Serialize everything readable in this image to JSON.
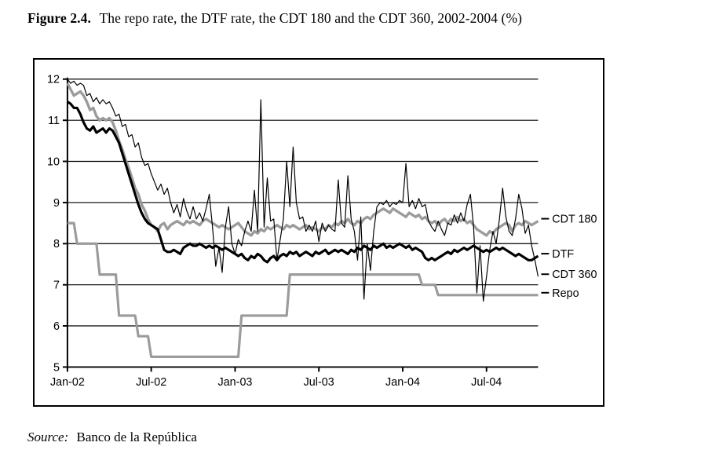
{
  "figure": {
    "label": "Figure 2.4.",
    "title": "The repo rate, the DTF rate, the CDT 180 and the CDT 360, 2002-2004 (%)"
  },
  "source": {
    "prefix": "Source:",
    "text": "Banco de la República"
  },
  "chart_data": {
    "type": "line",
    "title": "The repo rate, the DTF rate, the CDT 180 and the CDT 360, 2002-2004 (%)",
    "xlabel": "",
    "ylabel": "",
    "ylim": [
      5,
      12
    ],
    "y_ticks": [
      5,
      6,
      7,
      8,
      9,
      10,
      11,
      12
    ],
    "grid": "horizontal",
    "legend_position": "right-of-plot-at-line-ends",
    "x_unit": "weeks from Jan-2002 (weekly observations, Jan-2002 to Oct-2004)",
    "x_tick_labels": [
      "Jan-02",
      "Jul-02",
      "Jan-03",
      "Jul-03",
      "Jan-04",
      "Jul-04"
    ],
    "x_tick_week_index": [
      0,
      26,
      52,
      78,
      104,
      130
    ],
    "n_points": 147,
    "series": [
      {
        "name": "CDT 180",
        "color": "#9b9b9b",
        "stroke_width": 3.4,
        "values": [
          11.9,
          11.75,
          11.6,
          11.65,
          11.7,
          11.6,
          11.45,
          11.25,
          11.3,
          11.1,
          11.0,
          11.05,
          11.0,
          11.05,
          10.95,
          10.75,
          10.5,
          10.3,
          10.05,
          9.85,
          9.6,
          9.35,
          9.2,
          8.95,
          8.8,
          8.6,
          8.45,
          8.4,
          8.3,
          8.45,
          8.5,
          8.35,
          8.45,
          8.5,
          8.55,
          8.5,
          8.45,
          8.55,
          8.5,
          8.55,
          8.5,
          8.45,
          8.55,
          8.6,
          8.55,
          8.5,
          8.45,
          8.4,
          8.45,
          8.4,
          8.35,
          8.4,
          8.45,
          8.5,
          8.4,
          8.3,
          8.25,
          8.2,
          8.3,
          8.25,
          8.35,
          8.3,
          8.4,
          8.35,
          8.4,
          8.45,
          8.4,
          8.35,
          8.45,
          8.4,
          8.45,
          8.4,
          8.35,
          8.4,
          8.45,
          8.35,
          8.4,
          8.35,
          8.3,
          8.4,
          8.35,
          8.45,
          8.4,
          8.5,
          8.45,
          8.55,
          8.5,
          8.6,
          8.5,
          8.45,
          8.55,
          8.5,
          8.6,
          8.65,
          8.6,
          8.7,
          8.75,
          8.8,
          8.85,
          8.8,
          8.75,
          8.85,
          8.8,
          8.75,
          8.7,
          8.65,
          8.75,
          8.7,
          8.65,
          8.7,
          8.6,
          8.65,
          8.55,
          8.5,
          8.55,
          8.45,
          8.55,
          8.6,
          8.5,
          8.6,
          8.55,
          8.65,
          8.55,
          8.6,
          8.5,
          8.55,
          8.45,
          8.35,
          8.3,
          8.25,
          8.2,
          8.3,
          8.25,
          8.35,
          8.4,
          8.45,
          8.5,
          8.45,
          8.3,
          8.45,
          8.5,
          8.45,
          8.55,
          8.5,
          8.45,
          8.5,
          8.55
        ]
      },
      {
        "name": "DTF",
        "color": "#000000",
        "stroke_width": 3.2,
        "values": [
          11.45,
          11.4,
          11.3,
          11.3,
          11.15,
          10.95,
          10.8,
          10.75,
          10.85,
          10.7,
          10.75,
          10.8,
          10.7,
          10.8,
          10.75,
          10.6,
          10.45,
          10.2,
          9.95,
          9.7,
          9.45,
          9.2,
          8.95,
          8.75,
          8.6,
          8.5,
          8.45,
          8.4,
          8.35,
          8.1,
          7.85,
          7.8,
          7.8,
          7.85,
          7.8,
          7.75,
          7.9,
          7.95,
          8.0,
          7.95,
          7.95,
          8.0,
          7.95,
          7.9,
          7.95,
          7.9,
          7.95,
          7.9,
          7.85,
          7.9,
          7.85,
          7.8,
          7.75,
          7.7,
          7.75,
          7.65,
          7.6,
          7.7,
          7.65,
          7.75,
          7.7,
          7.6,
          7.55,
          7.65,
          7.7,
          7.6,
          7.7,
          7.75,
          7.7,
          7.8,
          7.75,
          7.8,
          7.7,
          7.75,
          7.8,
          7.75,
          7.7,
          7.8,
          7.75,
          7.8,
          7.85,
          7.75,
          7.8,
          7.85,
          7.8,
          7.85,
          7.8,
          7.75,
          7.85,
          7.8,
          7.9,
          7.85,
          7.95,
          7.9,
          7.85,
          7.95,
          7.9,
          7.95,
          8.0,
          7.9,
          7.95,
          7.9,
          7.95,
          8.0,
          7.95,
          7.9,
          7.95,
          7.85,
          7.9,
          7.85,
          7.8,
          7.65,
          7.6,
          7.65,
          7.6,
          7.65,
          7.7,
          7.75,
          7.8,
          7.75,
          7.85,
          7.8,
          7.85,
          7.9,
          7.85,
          7.9,
          7.95,
          7.9,
          7.85,
          7.8,
          7.85,
          7.8,
          7.85,
          7.9,
          7.85,
          7.9,
          7.85,
          7.8,
          7.75,
          7.7,
          7.75,
          7.7,
          7.65,
          7.6,
          7.6,
          7.65,
          7.7
        ]
      },
      {
        "name": "CDT 360",
        "color": "#000000",
        "stroke_width": 1.2,
        "values": [
          12.0,
          11.9,
          11.95,
          11.85,
          11.9,
          11.85,
          11.6,
          11.65,
          11.45,
          11.55,
          11.4,
          11.5,
          11.4,
          11.45,
          11.3,
          11.1,
          11.15,
          10.85,
          10.9,
          10.6,
          10.65,
          10.35,
          10.45,
          10.1,
          9.9,
          9.95,
          9.7,
          9.5,
          9.3,
          9.45,
          9.2,
          9.35,
          9.0,
          8.75,
          8.95,
          8.65,
          9.1,
          8.8,
          8.6,
          8.9,
          8.6,
          8.75,
          8.55,
          8.85,
          9.2,
          8.4,
          7.45,
          7.9,
          7.3,
          8.4,
          8.9,
          8.0,
          7.75,
          8.1,
          7.95,
          8.3,
          8.55,
          8.3,
          9.3,
          8.3,
          11.5,
          8.4,
          9.6,
          8.55,
          8.6,
          7.6,
          8.1,
          8.6,
          10.0,
          8.9,
          10.35,
          9.0,
          8.6,
          8.65,
          8.3,
          8.45,
          8.3,
          8.55,
          8.05,
          8.5,
          8.3,
          8.45,
          8.35,
          8.3,
          9.55,
          8.5,
          8.4,
          9.65,
          8.6,
          8.3,
          7.6,
          8.65,
          6.65,
          8.0,
          7.35,
          8.3,
          8.9,
          9.0,
          8.95,
          9.05,
          8.9,
          9.0,
          8.95,
          9.05,
          9.0,
          9.95,
          8.9,
          9.05,
          8.85,
          9.1,
          8.9,
          8.95,
          8.55,
          8.4,
          8.3,
          8.55,
          8.35,
          8.2,
          8.5,
          8.45,
          8.7,
          8.5,
          8.75,
          8.55,
          8.95,
          9.2,
          8.4,
          6.8,
          7.95,
          6.6,
          7.2,
          7.85,
          8.3,
          8.0,
          8.6,
          9.35,
          8.65,
          8.3,
          8.2,
          8.6,
          9.2,
          8.85,
          8.25,
          8.45,
          7.95,
          7.6,
          7.2
        ]
      },
      {
        "name": "Repo",
        "color": "#9b9b9b",
        "stroke_width": 3.2,
        "values": [
          8.5,
          8.5,
          8.5,
          8.0,
          8.0,
          8.0,
          8.0,
          8.0,
          8.0,
          8.0,
          7.25,
          7.25,
          7.25,
          7.25,
          7.25,
          7.25,
          6.25,
          6.25,
          6.25,
          6.25,
          6.25,
          6.25,
          5.75,
          5.75,
          5.75,
          5.75,
          5.25,
          5.25,
          5.25,
          5.25,
          5.25,
          5.25,
          5.25,
          5.25,
          5.25,
          5.25,
          5.25,
          5.25,
          5.25,
          5.25,
          5.25,
          5.25,
          5.25,
          5.25,
          5.25,
          5.25,
          5.25,
          5.25,
          5.25,
          5.25,
          5.25,
          5.25,
          5.25,
          5.25,
          6.25,
          6.25,
          6.25,
          6.25,
          6.25,
          6.25,
          6.25,
          6.25,
          6.25,
          6.25,
          6.25,
          6.25,
          6.25,
          6.25,
          6.25,
          7.25,
          7.25,
          7.25,
          7.25,
          7.25,
          7.25,
          7.25,
          7.25,
          7.25,
          7.25,
          7.25,
          7.25,
          7.25,
          7.25,
          7.25,
          7.25,
          7.25,
          7.25,
          7.25,
          7.25,
          7.25,
          7.25,
          7.25,
          7.25,
          7.25,
          7.25,
          7.25,
          7.25,
          7.25,
          7.25,
          7.25,
          7.25,
          7.25,
          7.25,
          7.25,
          7.25,
          7.25,
          7.25,
          7.25,
          7.25,
          7.25,
          7.0,
          7.0,
          7.0,
          7.0,
          7.0,
          6.75,
          6.75,
          6.75,
          6.75,
          6.75,
          6.75,
          6.75,
          6.75,
          6.75,
          6.75,
          6.75,
          6.75,
          6.75,
          6.75,
          6.75,
          6.75,
          6.75,
          6.75,
          6.75,
          6.75,
          6.75,
          6.75,
          6.75,
          6.75,
          6.75,
          6.75,
          6.75,
          6.75,
          6.75,
          6.75,
          6.75,
          6.75
        ]
      }
    ]
  }
}
